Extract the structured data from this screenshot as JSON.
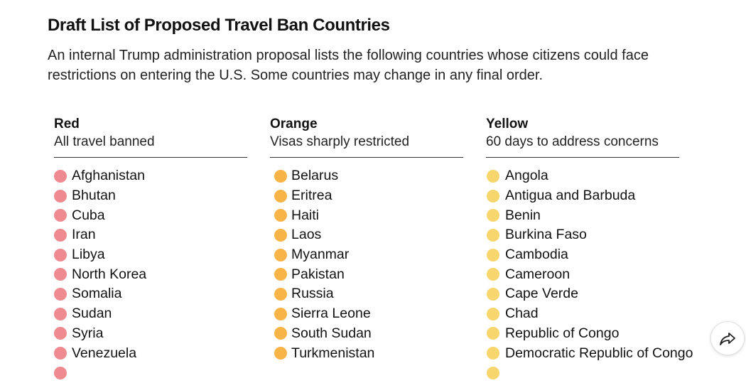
{
  "header": {
    "title": "Draft List of Proposed Travel Ban Countries",
    "subtitle": "An internal Trump administration proposal lists the following countries whose citizens could face restrictions on entering the U.S. Some countries may change in any final order."
  },
  "colors": {
    "red": "#ef8a91",
    "orange": "#f9b448",
    "yellow": "#f6d66d"
  },
  "columns": [
    {
      "title": "Red",
      "description": "All travel banned",
      "countries": [
        "Afghanistan",
        "Bhutan",
        "Cuba",
        "Iran",
        "Libya",
        "North Korea",
        "Somalia",
        "Sudan",
        "Syria",
        "Venezuela"
      ]
    },
    {
      "title": "Orange",
      "description": "Visas sharply restricted",
      "countries": [
        "Belarus",
        "Eritrea",
        "Haiti",
        "Laos",
        "Myanmar",
        "Pakistan",
        "Russia",
        "Sierra Leone",
        "South Sudan",
        "Turkmenistan"
      ]
    },
    {
      "title": "Yellow",
      "description": "60 days to address concerns",
      "countries": [
        "Angola",
        "Antigua and Barbuda",
        "Benin",
        "Burkina Faso",
        "Cambodia",
        "Cameroon",
        "Cape Verde",
        "Chad",
        "Republic of Congo",
        "Democratic Republic of Congo"
      ]
    }
  ],
  "share": {
    "icon": "share-icon"
  }
}
